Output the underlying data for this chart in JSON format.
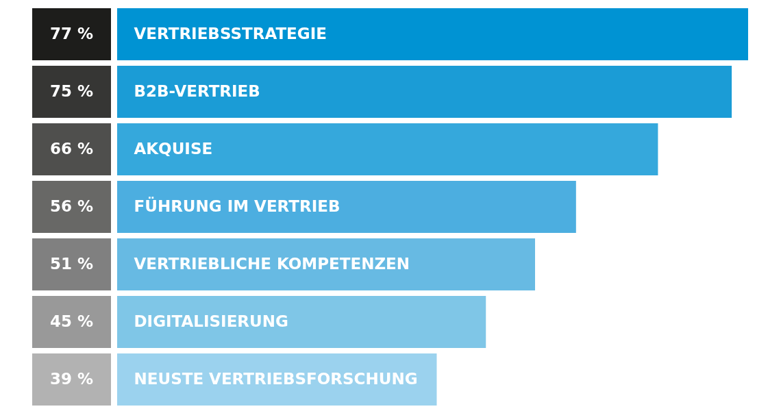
{
  "chart_data": {
    "type": "bar",
    "orientation": "horizontal",
    "categories": [
      "VERTRIEBSSTRATEGIE",
      "B2B-VERTRIEB",
      "AKQUISE",
      "FÜHRUNG IM VERTRIEB",
      "VERTRIEBLICHE KOMPETENZEN",
      "DIGITALISIERUNG",
      "NEUSTE VERTRIEBSFORSCHUNG"
    ],
    "values": [
      77,
      75,
      66,
      56,
      51,
      45,
      39
    ],
    "colors": [
      "#0093d3",
      "#1b9cd6",
      "#35a8dc",
      "#4caee0",
      "#67bae3",
      "#7fc6e7",
      "#9bd2ee"
    ],
    "value_labels": [
      "77 %",
      "75 %",
      "66 %",
      "56 %",
      "51 %",
      "45 %",
      "39 %"
    ],
    "tick_labels": "y"
  }
}
